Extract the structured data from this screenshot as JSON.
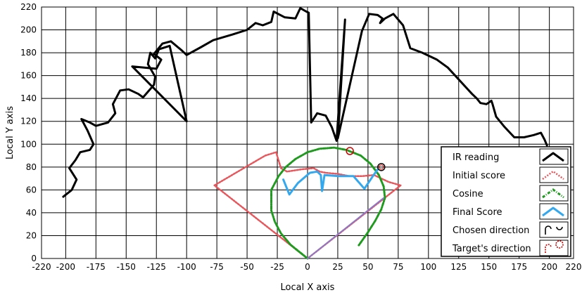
{
  "chart_data": {
    "type": "line",
    "xlabel": "Local X axis",
    "ylabel": "Local Y axis",
    "xlim": [
      -220,
      220
    ],
    "ylim": [
      0,
      220
    ],
    "xticks": [
      -220,
      -200,
      -175,
      -150,
      -125,
      -100,
      -75,
      -50,
      -25,
      0,
      25,
      50,
      75,
      100,
      125,
      150,
      175,
      200,
      220
    ],
    "yticks": [
      0,
      20,
      40,
      60,
      80,
      100,
      120,
      140,
      160,
      180,
      200,
      220
    ],
    "grid": true,
    "legend_position": "bottom-right",
    "colors": {
      "ir": "#000000",
      "initial": "#e8555a",
      "cosine": "#1f9a1f",
      "final": "#33a8ee",
      "chosen": "#000000",
      "target": "#cc0000",
      "diag": "#8a79c8"
    },
    "series": [
      {
        "name": "IR reading",
        "style": "solid",
        "points": [
          [
            -202,
            54
          ],
          [
            -195,
            60
          ],
          [
            -191,
            69
          ],
          [
            -197,
            79
          ],
          [
            -192,
            86
          ],
          [
            -188,
            93
          ],
          [
            -180,
            95
          ],
          [
            -177,
            100
          ],
          [
            -182,
            112
          ],
          [
            -187,
            122
          ],
          [
            -180,
            119
          ],
          [
            -175,
            116
          ],
          [
            -165,
            119
          ],
          [
            -159,
            127
          ],
          [
            -161,
            135
          ],
          [
            -155,
            147
          ],
          [
            -148,
            148
          ],
          [
            -140,
            144
          ],
          [
            -136,
            141
          ],
          [
            -127,
            152
          ],
          [
            -126,
            159
          ],
          [
            -132,
            170
          ],
          [
            -130,
            180
          ],
          [
            -126,
            175
          ],
          [
            -123,
            183
          ],
          [
            -114,
            186
          ],
          [
            -100,
            120
          ],
          [
            -145,
            168
          ],
          [
            -125,
            166
          ],
          [
            -121,
            174
          ],
          [
            -127,
            179
          ],
          [
            -120,
            188
          ],
          [
            -113,
            190
          ],
          [
            -104,
            182
          ],
          [
            -100,
            178
          ],
          [
            -88,
            185
          ],
          [
            -78,
            191
          ],
          [
            -62,
            196
          ],
          [
            -50,
            200
          ],
          [
            -43,
            206
          ],
          [
            -37,
            204
          ],
          [
            -30,
            207
          ],
          [
            -28,
            216
          ],
          [
            -19,
            211
          ],
          [
            -10,
            210
          ],
          [
            -6,
            219
          ],
          [
            -1,
            216
          ],
          [
            1,
            215
          ],
          [
            3,
            119
          ],
          [
            8,
            127
          ],
          [
            15,
            125
          ],
          [
            20,
            115
          ],
          [
            24,
            103
          ],
          [
            31,
            209
          ],
          [
            25,
            105
          ],
          [
            45,
            199
          ],
          [
            51,
            214
          ],
          [
            58,
            213
          ],
          [
            62,
            210
          ],
          [
            60,
            206
          ],
          [
            64,
            210
          ],
          [
            71,
            214
          ],
          [
            79,
            204
          ],
          [
            85,
            184
          ],
          [
            95,
            180
          ],
          [
            107,
            174
          ],
          [
            116,
            167
          ],
          [
            136,
            144
          ],
          [
            140,
            140
          ],
          [
            143,
            136
          ],
          [
            148,
            135
          ],
          [
            152,
            138
          ],
          [
            153,
            135
          ],
          [
            156,
            124
          ],
          [
            163,
            115
          ],
          [
            171,
            106
          ],
          [
            179,
            106
          ],
          [
            187,
            108
          ],
          [
            193,
            110
          ],
          [
            196,
            104
          ],
          [
            198,
            99
          ]
        ]
      },
      {
        "name": "Initial score",
        "style": "dotted",
        "points": [
          [
            0,
            0
          ],
          [
            -77,
            64
          ],
          [
            -64,
            72
          ],
          [
            -48,
            82
          ],
          [
            -35,
            90
          ],
          [
            -26,
            93
          ],
          [
            -22,
            79
          ],
          [
            -17,
            76
          ],
          [
            -5,
            78
          ],
          [
            5,
            79
          ],
          [
            10,
            76
          ],
          [
            15,
            75
          ],
          [
            25,
            74
          ],
          [
            35,
            72
          ],
          [
            45,
            72
          ],
          [
            55,
            73
          ],
          [
            67,
            67
          ],
          [
            77,
            64
          ],
          [
            0,
            0
          ]
        ]
      },
      {
        "name": "Cosine",
        "style": "dash-dot",
        "points": [
          [
            0,
            0
          ],
          [
            -14,
            12
          ],
          [
            -22,
            22
          ],
          [
            -27,
            32
          ],
          [
            -30,
            42
          ],
          [
            -30,
            60
          ],
          [
            -24,
            72
          ],
          [
            -18,
            80
          ],
          [
            -10,
            87
          ],
          [
            0,
            93
          ],
          [
            10,
            96
          ],
          [
            22,
            97
          ],
          [
            32,
            95
          ],
          [
            44,
            90
          ],
          [
            52,
            83
          ],
          [
            59,
            73
          ],
          [
            63,
            63
          ],
          [
            64,
            53
          ],
          [
            61,
            43
          ],
          [
            56,
            33
          ],
          [
            50,
            23
          ],
          [
            42,
            11
          ]
        ]
      },
      {
        "name": "Final Score",
        "style": "solid",
        "points": [
          [
            -20,
            69
          ],
          [
            -15,
            56
          ],
          [
            -8,
            66
          ],
          [
            2,
            75
          ],
          [
            8,
            76
          ],
          [
            11,
            73
          ],
          [
            12,
            59
          ],
          [
            14,
            73
          ],
          [
            26,
            72
          ],
          [
            38,
            72
          ],
          [
            47,
            61
          ],
          [
            54,
            72
          ],
          [
            58,
            78
          ]
        ]
      },
      {
        "name": "Diagonal",
        "style": "solid",
        "points": [
          [
            0,
            0
          ],
          [
            63,
            53
          ]
        ]
      }
    ],
    "markers": [
      {
        "name": "Chosen direction",
        "point": [
          61,
          80
        ]
      },
      {
        "name": "Target's direction",
        "point": [
          35,
          94
        ]
      }
    ],
    "legend": [
      {
        "label": "IR reading"
      },
      {
        "label": "Initial score"
      },
      {
        "label": "Cosine"
      },
      {
        "label": "Final Score"
      },
      {
        "label": "Chosen direction"
      },
      {
        "label": "Target's direction"
      }
    ]
  }
}
